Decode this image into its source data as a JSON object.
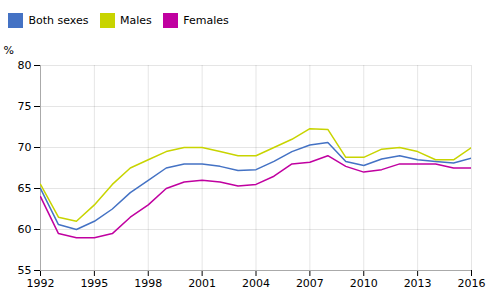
{
  "chart_data": {
    "type": "line",
    "x": [
      1992,
      1993,
      1994,
      1995,
      1996,
      1997,
      1998,
      1999,
      2000,
      2001,
      2002,
      2003,
      2004,
      2005,
      2006,
      2007,
      2008,
      2009,
      2010,
      2011,
      2012,
      2013,
      2014,
      2015,
      2016
    ],
    "series": [
      {
        "name": "Both sexes",
        "color": "#4472c4",
        "values": [
          65.0,
          60.6,
          60.0,
          61.0,
          62.5,
          64.5,
          66.0,
          67.5,
          68.0,
          68.0,
          67.7,
          67.2,
          67.3,
          68.3,
          69.5,
          70.3,
          70.6,
          68.3,
          67.8,
          68.6,
          69.0,
          68.5,
          68.3,
          68.1,
          68.7
        ]
      },
      {
        "name": "Males",
        "color": "#c8d400",
        "values": [
          65.5,
          61.5,
          61.0,
          63.0,
          65.5,
          67.5,
          68.5,
          69.5,
          70.0,
          70.0,
          69.5,
          69.0,
          69.0,
          70.0,
          71.0,
          72.3,
          72.2,
          68.8,
          68.8,
          69.8,
          70.0,
          69.5,
          68.5,
          68.5,
          70.0
        ]
      },
      {
        "name": "Females",
        "color": "#c000a0",
        "values": [
          64.0,
          59.5,
          59.0,
          59.0,
          59.5,
          61.5,
          63.0,
          65.0,
          65.8,
          66.0,
          65.8,
          65.3,
          65.5,
          66.5,
          68.0,
          68.2,
          69.0,
          67.7,
          67.0,
          67.3,
          68.0,
          68.0,
          68.0,
          67.5,
          67.5
        ]
      }
    ],
    "ylabel": "%",
    "xlim": [
      1992,
      2016
    ],
    "xticks": [
      1992,
      1995,
      1998,
      2001,
      2004,
      2007,
      2010,
      2013,
      2016
    ],
    "ylim": [
      55,
      80
    ],
    "yticks": [
      55,
      60,
      65,
      70,
      75,
      80
    ],
    "grid": true,
    "legend": "upper left"
  }
}
